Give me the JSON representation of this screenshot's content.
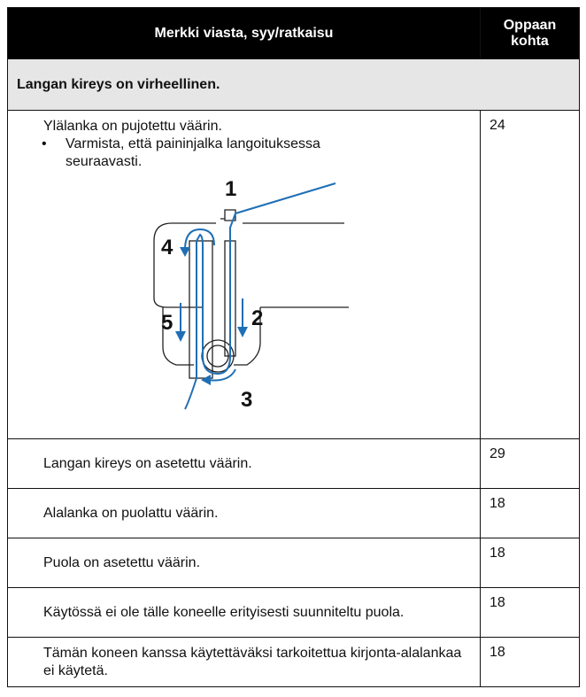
{
  "table": {
    "header": {
      "topic": "Merkki viasta, syy/ratkaisu",
      "page_lines": [
        "Oppaan",
        "kohta"
      ]
    },
    "section": "Langan kireys on virheellinen.",
    "rows": [
      {
        "cause": "Ylälanka on pujotettu väärin.",
        "bullet": "Varmista, että paininjalka langoituksessa seuraavasti.",
        "page": 24
      },
      {
        "cause": "Langan kireys on asetettu väärin.",
        "page": 29
      },
      {
        "cause": "Alalanka on puolattu väärin.",
        "page": 18
      },
      {
        "cause": "Puola on asetettu väärin.",
        "page": 18
      },
      {
        "cause": "Käytössä ei ole tälle koneelle erityisesti suunniteltu puola.",
        "page": 18
      },
      {
        "cause": "Tämän koneen kanssa käytettäväksi tarkoitettua kirjonta-alalankaa ei käytetä.",
        "page": 18
      }
    ]
  },
  "figure": {
    "labels": [
      "1",
      "2",
      "3",
      "4",
      "5"
    ]
  }
}
